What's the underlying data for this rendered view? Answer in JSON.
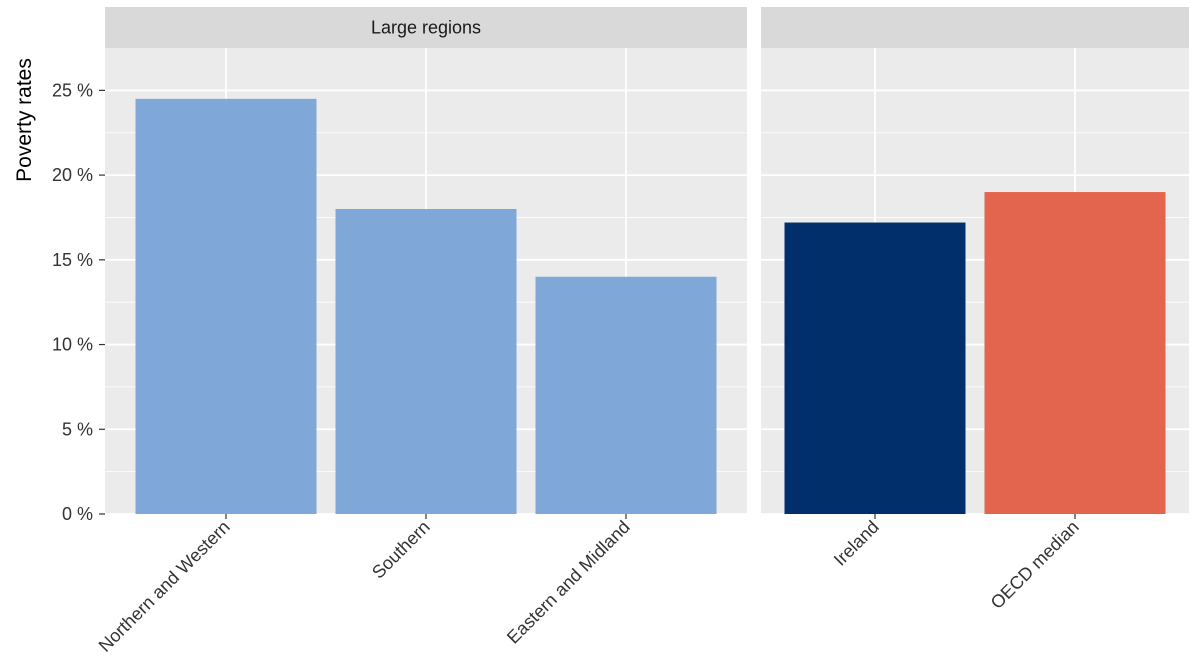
{
  "chart_data": {
    "type": "bar",
    "ylabel": "Poverty rates",
    "ylim": [
      0,
      27.5
    ],
    "yticks": [
      0,
      5,
      10,
      15,
      20,
      25
    ],
    "ytick_labels": [
      "0 %",
      "5 %",
      "10 %",
      "15 %",
      "20 %",
      "25 %"
    ],
    "grid": true,
    "panels": [
      {
        "strip": "Large regions",
        "categories": [
          "Northern and Western",
          "Southern",
          "Eastern and Midland"
        ],
        "values": [
          24.5,
          18.0,
          14.0
        ],
        "colors": [
          "#7fa8d9",
          "#7fa8d9",
          "#7fa8d9"
        ]
      },
      {
        "strip": "",
        "categories": [
          "Ireland",
          "OECD median"
        ],
        "values": [
          17.2,
          19.0
        ],
        "colors": [
          "#002f6c",
          "#e3654e"
        ]
      }
    ]
  },
  "colors": {
    "panel_bg": "#ebebeb",
    "strip_bg": "#d9d9d9",
    "grid": "#ffffff"
  }
}
